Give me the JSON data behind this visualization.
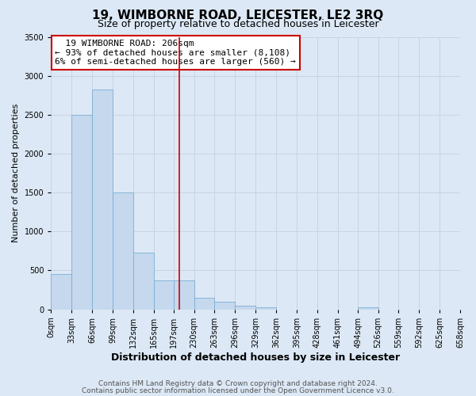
{
  "title": "19, WIMBORNE ROAD, LEICESTER, LE2 3RQ",
  "subtitle": "Size of property relative to detached houses in Leicester",
  "xlabel": "Distribution of detached houses by size in Leicester",
  "ylabel": "Number of detached properties",
  "footer_line1": "Contains HM Land Registry data © Crown copyright and database right 2024.",
  "footer_line2": "Contains public sector information licensed under the Open Government Licence v3.0.",
  "annotation_title": "19 WIMBORNE ROAD: 206sqm",
  "annotation_line2": "← 93% of detached houses are smaller (8,108)",
  "annotation_line3": "6% of semi-detached houses are larger (560) →",
  "property_line_x": 206,
  "bar_edges": [
    0,
    33,
    66,
    99,
    132,
    165,
    197,
    230,
    263,
    296,
    329,
    362,
    395,
    428,
    461,
    494,
    526,
    559,
    592,
    625,
    658
  ],
  "bar_heights": [
    450,
    2500,
    2820,
    1500,
    725,
    375,
    375,
    150,
    100,
    50,
    30,
    0,
    0,
    0,
    0,
    30,
    0,
    0,
    0,
    0
  ],
  "bar_color": "#c5d8ed",
  "bar_edgecolor": "#7bafd4",
  "vline_color": "#cc0000",
  "annotation_box_edgecolor": "#cc0000",
  "annotation_box_facecolor": "#ffffff",
  "grid_color": "#c8d4e0",
  "background_color": "#dce8f5",
  "ylim": [
    0,
    3500
  ],
  "yticks": [
    0,
    500,
    1000,
    1500,
    2000,
    2500,
    3000,
    3500
  ],
  "title_fontsize": 11,
  "subtitle_fontsize": 9,
  "xlabel_fontsize": 9,
  "ylabel_fontsize": 8,
  "tick_fontsize": 7,
  "annotation_fontsize": 8,
  "footer_fontsize": 6.5
}
